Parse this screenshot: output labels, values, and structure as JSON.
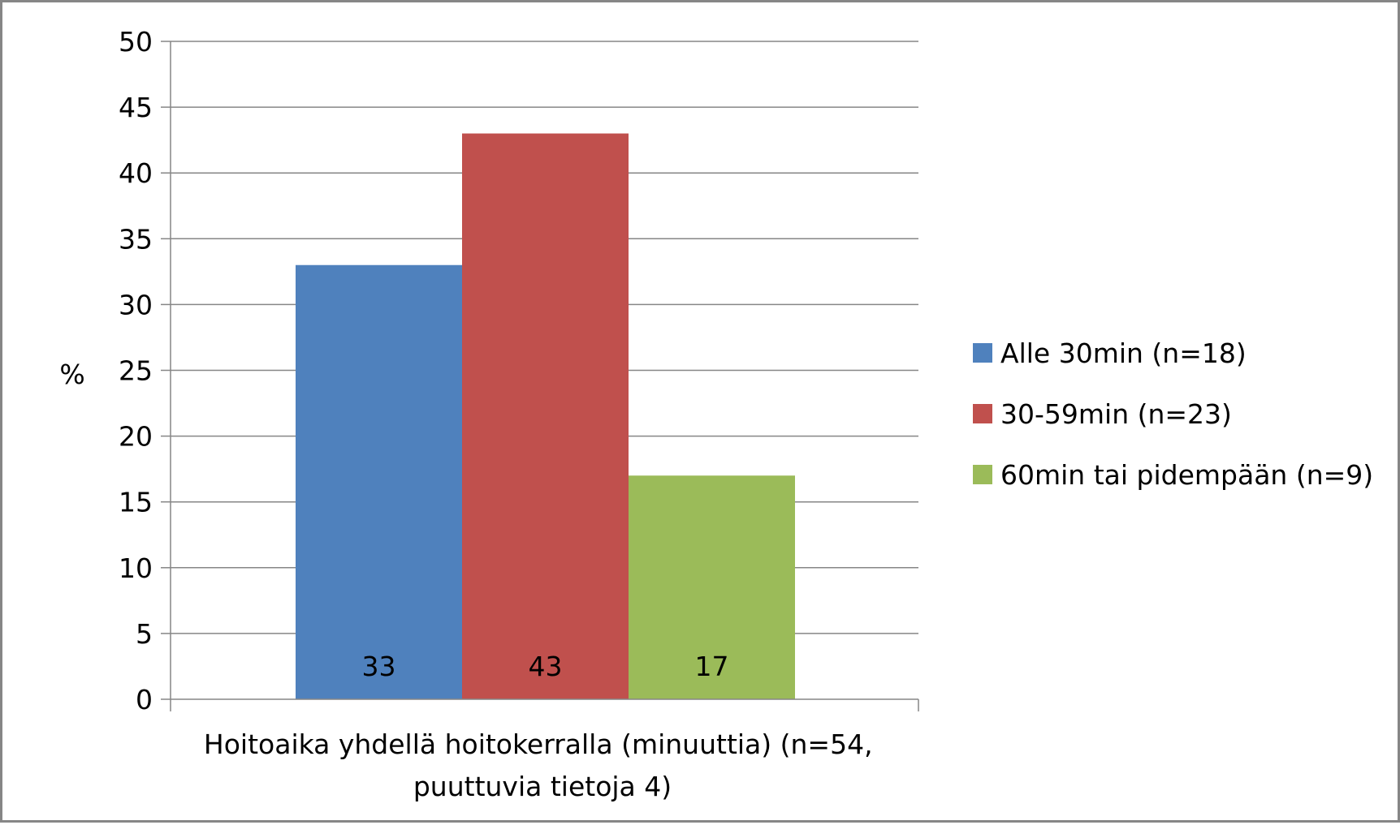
{
  "chart_data": {
    "type": "bar",
    "title": "",
    "xlabel_lines": [
      "Hoitoaika yhdellä hoitokerralla (minuuttia) (n=54,",
      "puuttuvia tietoja 4)"
    ],
    "ylabel": "%",
    "ylim": [
      0,
      50
    ],
    "yticks": [
      "0",
      "5",
      "10",
      "15",
      "20",
      "25",
      "30",
      "35",
      "40",
      "45",
      "50"
    ],
    "grid": true,
    "legend_position": "right",
    "categories": [
      "Hoitoaika yhdellä hoitokerralla (minuuttia) (n=54, puuttuvia tietoja 4)"
    ],
    "series": [
      {
        "name": "Alle 30min (n=18)",
        "values": [
          33
        ],
        "label": "33",
        "color": "#4f81bd"
      },
      {
        "name": "30-59min (n=23)",
        "values": [
          43
        ],
        "label": "43",
        "color": "#c0504d"
      },
      {
        "name": "60min tai pidempään (n=9)",
        "values": [
          17
        ],
        "label": "17",
        "color": "#9bbb59"
      }
    ]
  }
}
